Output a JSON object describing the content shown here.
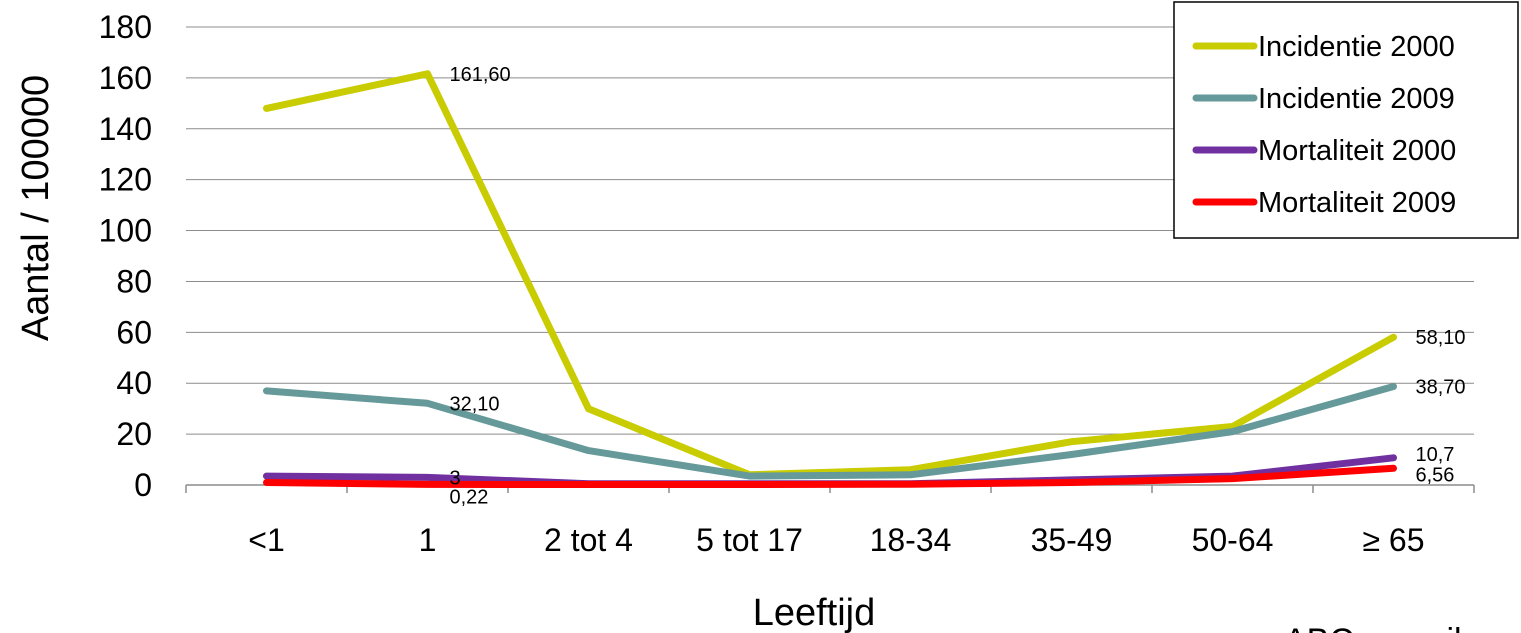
{
  "chart_data": {
    "type": "line",
    "title": "",
    "xlabel": "Leeftijd",
    "ylabel": "Aantal / 100000",
    "ylim": [
      0,
      180
    ],
    "yticks": [
      0,
      20,
      40,
      60,
      80,
      100,
      120,
      140,
      160,
      180
    ],
    "grid": true,
    "legend_position": "top-right",
    "categories": [
      "<1",
      "1",
      "2 tot 4",
      "5 tot 17",
      "18-34",
      "35-49",
      "50-64",
      "≥ 65"
    ],
    "series": [
      {
        "name": "Incidentie 2000",
        "color": "#c8cc00",
        "values": [
          148,
          161.6,
          30,
          4,
          6,
          17,
          23,
          58.1
        ]
      },
      {
        "name": "Incidentie 2009",
        "color": "#669999",
        "values": [
          37,
          32.1,
          13.5,
          3.5,
          4,
          12,
          21,
          38.7
        ]
      },
      {
        "name": "Mortaliteit 2000",
        "color": "#7030a0",
        "values": [
          3.5,
          3,
          0.5,
          0.5,
          0.5,
          2,
          3.5,
          10.7
        ]
      },
      {
        "name": "Mortaliteit 2009",
        "color": "#ff0000",
        "values": [
          1,
          0.22,
          0.2,
          0.2,
          0.3,
          1,
          2.5,
          6.56
        ]
      }
    ],
    "data_labels": [
      {
        "series": 0,
        "index": 1,
        "text": "161,60"
      },
      {
        "series": 0,
        "index": 7,
        "text": "58,10"
      },
      {
        "series": 1,
        "index": 1,
        "text": "32,10"
      },
      {
        "series": 1,
        "index": 7,
        "text": "38,70"
      },
      {
        "series": 2,
        "index": 1,
        "text": "3"
      },
      {
        "series": 2,
        "index": 7,
        "text": "10,7"
      },
      {
        "series": 3,
        "index": 1,
        "text": "0,22"
      },
      {
        "series": 3,
        "index": 7,
        "text": "6,56"
      }
    ]
  },
  "footer_text": "ABC surveil"
}
